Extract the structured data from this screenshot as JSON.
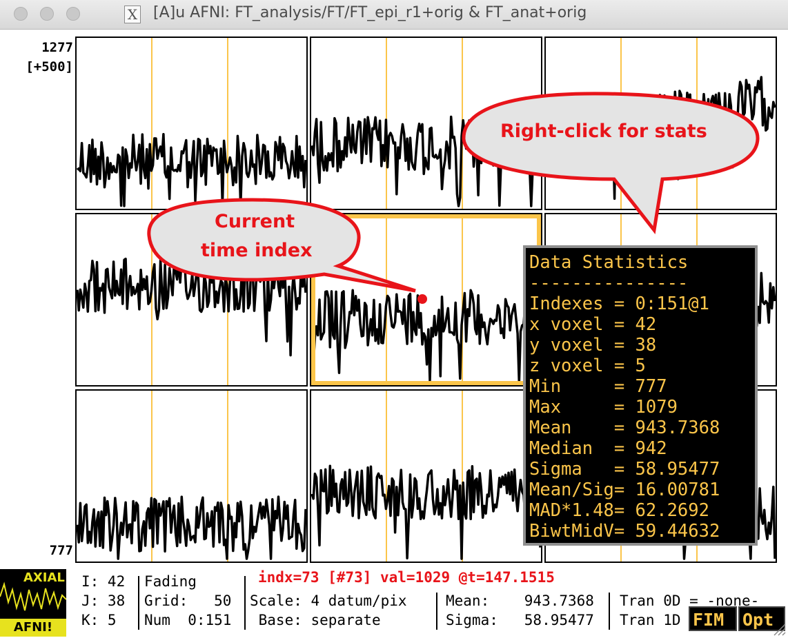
{
  "window": {
    "title": "[A]u AFNI: FT_analysis/FT/FT_epi_r1+orig & FT_anat+orig",
    "x_icon": "X"
  },
  "axis": {
    "top_value": "1277",
    "top_scale": "[+500]",
    "bottom_value": "777"
  },
  "graph": {
    "rows": 3,
    "cols": 3,
    "n_points": 152,
    "selected_panel": "center",
    "current_index": 73,
    "ymin": 777,
    "ymax": 1277
  },
  "callouts": {
    "stats": "Right-click for stats",
    "time_line1": "Current",
    "time_line2": "time index"
  },
  "stats": {
    "title": "Data Statistics",
    "divider": "---------------",
    "lines": [
      "Indexes = 0:151@1",
      "x voxel = 42",
      "y voxel = 38",
      "z voxel = 5",
      "Min     = 777",
      "Max     = 1079",
      "Mean    = 943.7368",
      "Median  = 942",
      "Sigma   = 58.95477",
      "Mean/Sig= 16.00781",
      "MAD*1.48= 62.2692",
      "BiwtMidV= 59.44632"
    ]
  },
  "logo": {
    "top": "AXIAL",
    "bottom": "AFNI!"
  },
  "status": {
    "i": "I: 42",
    "j": "J: 38",
    "k": "K: 5",
    "fading": "Fading",
    "grid": "Grid:   50",
    "num": "Num  0:151",
    "index_line": "indx=73 [#73] val=1029 @t=147.1515",
    "scale": "Scale: 4 datum/pix",
    "base": " Base: separate",
    "mean": "Mean:    943.7368",
    "sigma": "Sigma:   58.95477",
    "tran0": "Tran 0D = -none-",
    "tran1": "Tran 1D"
  },
  "buttons": {
    "fim": "FIM",
    "opt": "Opt"
  },
  "colors": {
    "accent": "#fbc54a",
    "annotation": "#e8141a",
    "trace": "#000000"
  }
}
